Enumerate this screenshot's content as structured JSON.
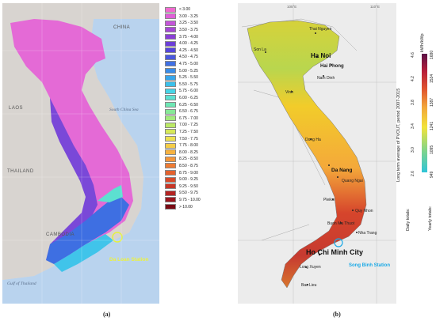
{
  "panel_a": {
    "caption": "(a)",
    "countries": [
      "CHINA",
      "LAOS",
      "THAILAND",
      "CAMBODIA"
    ],
    "seas": [
      "South China Sea",
      "Gulf of Thailand"
    ],
    "station": "Da Loan Station",
    "legend": [
      "< 3.00",
      "3.00 - 3.25",
      "3.25 - 3.50",
      "3.50 - 3.75",
      "3.75 - 4.00",
      "4.00 - 4.25",
      "4.25 - 4.50",
      "4.50 - 4.75",
      "4.75 - 5.00",
      "5.00 - 5.25",
      "5.25 - 5.50",
      "5.50 - 5.75",
      "5.75 - 6.00",
      "6.00 - 6.25",
      "6.25 - 6.50",
      "6.50 - 6.75",
      "6.75 - 7.00",
      "7.00 - 7.25",
      "7.25 - 7.50",
      "7.50 - 7.75",
      "7.75 - 8.00",
      "8.00 - 8.25",
      "8.25 - 8.50",
      "8.50 - 8.75",
      "8.75 - 9.00",
      "9.00 - 9.25",
      "9.25 - 9.50",
      "9.50 - 9.75",
      "9.75 - 10.00",
      "> 10.00"
    ],
    "legend_colors": [
      "#f06ad0",
      "#e060d8",
      "#c455d8",
      "#a648d6",
      "#8a3fd6",
      "#6c3ed8",
      "#5646dc",
      "#4a58e0",
      "#4070e4",
      "#3a8ce8",
      "#38a6ea",
      "#3cc0ea",
      "#48d4e6",
      "#5ce0d0",
      "#6ee6b4",
      "#86e896",
      "#a2ea7c",
      "#bcea66",
      "#d6e858",
      "#ece050",
      "#f4cc48",
      "#f6b240",
      "#f4963a",
      "#ee7c34",
      "#e4622e",
      "#d84a2a",
      "#c83626",
      "#b42422",
      "#9c161e",
      "#7a0a14"
    ]
  },
  "panel_b": {
    "caption": "(b)",
    "cities": [
      "Thai Nguyen",
      "Son La",
      "Ha Noi",
      "Hai Phong",
      "Nam Dinh",
      "Vinh",
      "Dong Ha",
      "Da Nang",
      "Quang Ngai",
      "Pleiku",
      "Quy Nhon",
      "Buon Ma Thuot",
      "Nha Trang",
      "Ho Chi Minh City",
      "Long Xuyen",
      "Bac Lieu"
    ],
    "station": "Song Binh Station",
    "lon_ticks": [
      "105°E",
      "110°E"
    ],
    "legend_title": "Long term average of PVOUT, period 2007-2015",
    "unit": "kWh/kWp",
    "daily_label": "Daily totals:",
    "yearly_label": "Yearly totals:",
    "daily_ticks": [
      "2.6",
      "3.0",
      "3.4",
      "3.8",
      "4.2",
      "4.6"
    ],
    "yearly_ticks": [
      "949",
      "1095",
      "1241",
      "1387",
      "1534",
      "1680"
    ]
  }
}
